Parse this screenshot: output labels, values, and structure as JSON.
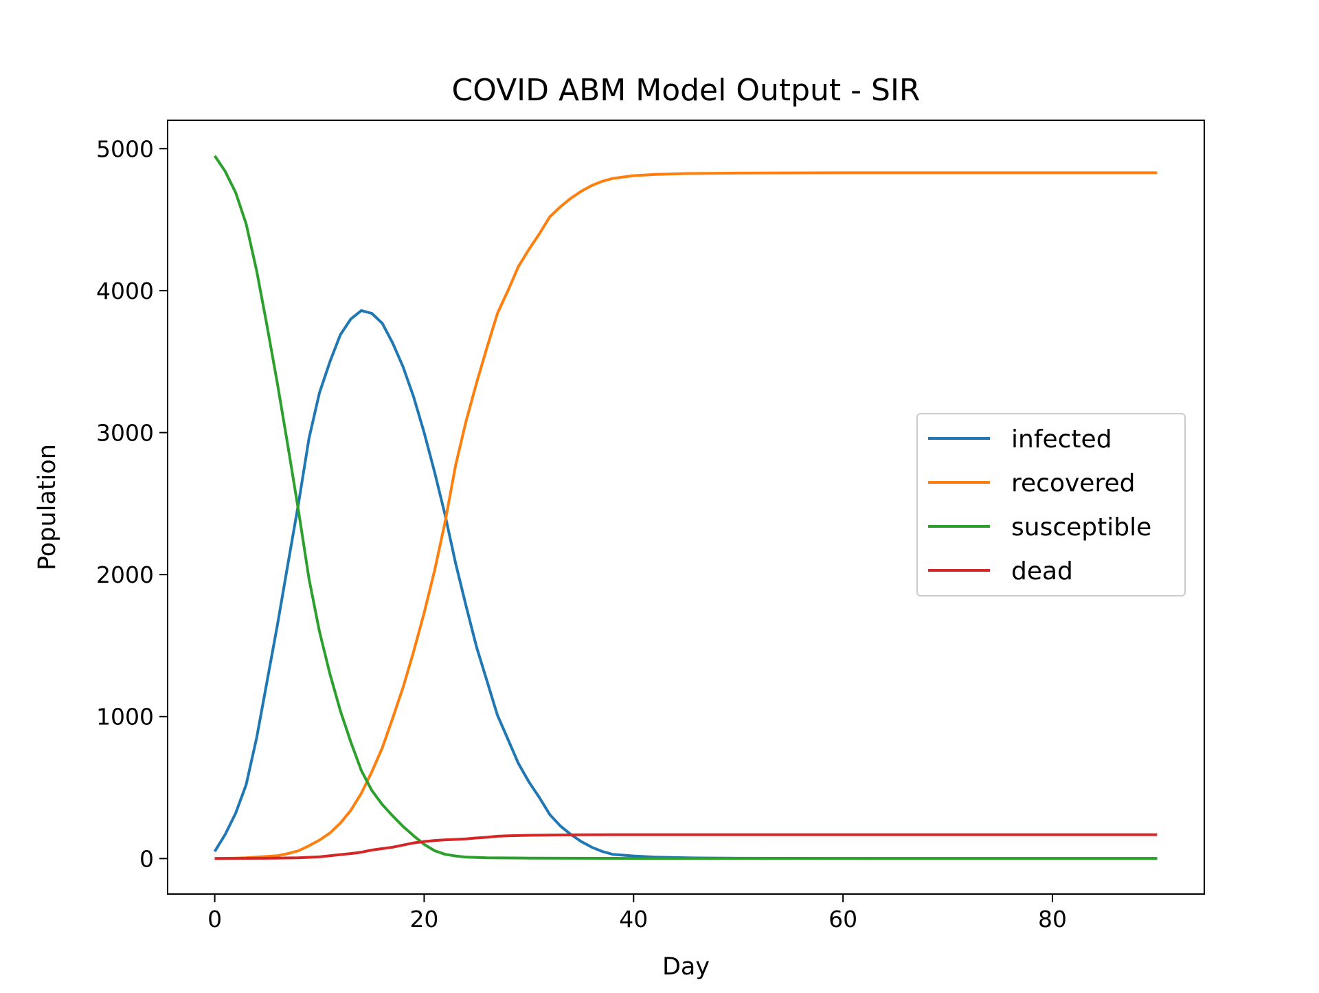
{
  "chart_data": {
    "type": "line",
    "title": "COVID ABM Model Output - SIR",
    "xlabel": "Day",
    "ylabel": "Population",
    "xlim": [
      -4.5,
      94.5
    ],
    "ylim": [
      -250,
      5200
    ],
    "xticks": [
      0,
      20,
      40,
      60,
      80
    ],
    "yticks": [
      0,
      1000,
      2000,
      3000,
      4000,
      5000
    ],
    "grid": false,
    "legend_position": "center-right",
    "series": [
      {
        "name": "infected",
        "color": "#1f77b4",
        "points": [
          [
            0,
            50
          ],
          [
            1,
            170
          ],
          [
            2,
            320
          ],
          [
            3,
            520
          ],
          [
            4,
            850
          ],
          [
            5,
            1250
          ],
          [
            6,
            1650
          ],
          [
            7,
            2080
          ],
          [
            8,
            2500
          ],
          [
            9,
            2960
          ],
          [
            10,
            3280
          ],
          [
            11,
            3500
          ],
          [
            12,
            3690
          ],
          [
            13,
            3800
          ],
          [
            14,
            3860
          ],
          [
            15,
            3840
          ],
          [
            16,
            3770
          ],
          [
            17,
            3630
          ],
          [
            18,
            3460
          ],
          [
            19,
            3250
          ],
          [
            20,
            3000
          ],
          [
            21,
            2720
          ],
          [
            22,
            2420
          ],
          [
            23,
            2080
          ],
          [
            24,
            1780
          ],
          [
            25,
            1490
          ],
          [
            26,
            1250
          ],
          [
            27,
            1010
          ],
          [
            28,
            840
          ],
          [
            29,
            670
          ],
          [
            30,
            540
          ],
          [
            31,
            430
          ],
          [
            32,
            310
          ],
          [
            33,
            230
          ],
          [
            34,
            170
          ],
          [
            35,
            120
          ],
          [
            36,
            80
          ],
          [
            37,
            50
          ],
          [
            38,
            30
          ],
          [
            40,
            18
          ],
          [
            42,
            10
          ],
          [
            45,
            5
          ],
          [
            50,
            2
          ],
          [
            60,
            1
          ],
          [
            90,
            1
          ]
        ]
      },
      {
        "name": "recovered",
        "color": "#ff7f0e",
        "points": [
          [
            0,
            0
          ],
          [
            2,
            3
          ],
          [
            3,
            5
          ],
          [
            4,
            10
          ],
          [
            5,
            15
          ],
          [
            6,
            20
          ],
          [
            7,
            35
          ],
          [
            8,
            55
          ],
          [
            9,
            90
          ],
          [
            10,
            130
          ],
          [
            11,
            180
          ],
          [
            12,
            250
          ],
          [
            13,
            340
          ],
          [
            14,
            460
          ],
          [
            15,
            610
          ],
          [
            16,
            780
          ],
          [
            17,
            990
          ],
          [
            18,
            1210
          ],
          [
            19,
            1460
          ],
          [
            20,
            1730
          ],
          [
            21,
            2030
          ],
          [
            22,
            2370
          ],
          [
            23,
            2770
          ],
          [
            24,
            3080
          ],
          [
            25,
            3350
          ],
          [
            26,
            3600
          ],
          [
            27,
            3840
          ],
          [
            28,
            4000
          ],
          [
            29,
            4170
          ],
          [
            30,
            4290
          ],
          [
            31,
            4400
          ],
          [
            32,
            4520
          ],
          [
            33,
            4590
          ],
          [
            34,
            4650
          ],
          [
            35,
            4700
          ],
          [
            36,
            4740
          ],
          [
            37,
            4770
          ],
          [
            38,
            4790
          ],
          [
            39,
            4800
          ],
          [
            40,
            4810
          ],
          [
            42,
            4818
          ],
          [
            45,
            4825
          ],
          [
            50,
            4828
          ],
          [
            60,
            4830
          ],
          [
            90,
            4830
          ]
        ]
      },
      {
        "name": "susceptible",
        "color": "#2ca02c",
        "points": [
          [
            0,
            4950
          ],
          [
            1,
            4840
          ],
          [
            2,
            4690
          ],
          [
            3,
            4470
          ],
          [
            4,
            4140
          ],
          [
            5,
            3750
          ],
          [
            6,
            3340
          ],
          [
            7,
            2900
          ],
          [
            8,
            2450
          ],
          [
            9,
            1970
          ],
          [
            10,
            1600
          ],
          [
            11,
            1300
          ],
          [
            12,
            1040
          ],
          [
            13,
            820
          ],
          [
            14,
            620
          ],
          [
            15,
            480
          ],
          [
            16,
            380
          ],
          [
            17,
            300
          ],
          [
            18,
            225
          ],
          [
            19,
            160
          ],
          [
            20,
            100
          ],
          [
            21,
            55
          ],
          [
            22,
            30
          ],
          [
            23,
            18
          ],
          [
            24,
            10
          ],
          [
            26,
            5
          ],
          [
            30,
            3
          ],
          [
            40,
            1
          ],
          [
            90,
            0
          ]
        ]
      },
      {
        "name": "dead",
        "color": "#d62728",
        "points": [
          [
            0,
            0
          ],
          [
            5,
            2
          ],
          [
            8,
            5
          ],
          [
            10,
            12
          ],
          [
            11,
            20
          ],
          [
            12,
            28
          ],
          [
            13,
            35
          ],
          [
            14,
            45
          ],
          [
            15,
            60
          ],
          [
            16,
            70
          ],
          [
            17,
            80
          ],
          [
            18,
            95
          ],
          [
            19,
            110
          ],
          [
            20,
            120
          ],
          [
            21,
            127
          ],
          [
            22,
            132
          ],
          [
            23,
            135
          ],
          [
            24,
            138
          ],
          [
            25,
            145
          ],
          [
            26,
            150
          ],
          [
            27,
            157
          ],
          [
            28,
            160
          ],
          [
            29,
            162
          ],
          [
            30,
            164
          ],
          [
            32,
            166
          ],
          [
            35,
            167
          ],
          [
            40,
            168
          ],
          [
            90,
            168
          ]
        ]
      }
    ]
  }
}
